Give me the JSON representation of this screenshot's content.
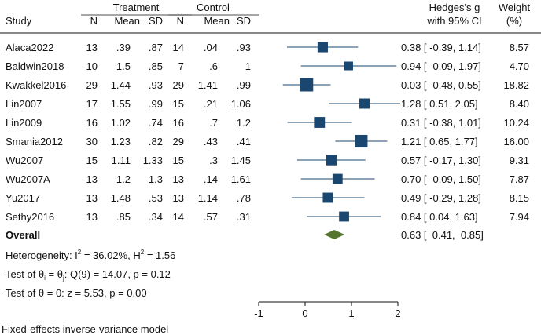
{
  "chart_data": {
    "type": "forest",
    "headers": {
      "study": "Study",
      "treatment": "Treatment",
      "control": "Control",
      "n": "N",
      "mean": "Mean",
      "sd": "SD",
      "effect_line1": "Hedges's g",
      "effect_line2": "with 95% CI",
      "weight_line1": "Weight",
      "weight_line2": "(%)"
    },
    "studies": [
      {
        "name": "Alaca2022",
        "t_n": "13",
        "t_mean": ".39",
        "t_sd": ".87",
        "c_n": "14",
        "c_mean": ".04",
        "c_sd": ".93",
        "g": 0.38,
        "lo": -0.39,
        "hi": 1.14,
        "ci_text": "0.38 [ -0.39,  1.14]",
        "weight": 8.57,
        "weight_text": "8.57"
      },
      {
        "name": "Baldwin2018",
        "t_n": "10",
        "t_mean": "1.5",
        "t_sd": ".85",
        "c_n": "7",
        "c_mean": ".6",
        "c_sd": "1",
        "g": 0.94,
        "lo": -0.09,
        "hi": 1.97,
        "ci_text": "0.94 [ -0.09,  1.97]",
        "weight": 4.7,
        "weight_text": "4.70"
      },
      {
        "name": "Kwakkel2016",
        "t_n": "29",
        "t_mean": "1.44",
        "t_sd": ".93",
        "c_n": "29",
        "c_mean": "1.41",
        "c_sd": ".99",
        "g": 0.03,
        "lo": -0.48,
        "hi": 0.55,
        "ci_text": "0.03 [ -0.48,  0.55]",
        "weight": 18.82,
        "weight_text": "18.82"
      },
      {
        "name": "Lin2007",
        "t_n": "17",
        "t_mean": "1.55",
        "t_sd": ".99",
        "c_n": "15",
        "c_mean": ".21",
        "c_sd": "1.06",
        "g": 1.28,
        "lo": 0.51,
        "hi": 2.05,
        "ci_text": "1.28 [  0.51,  2.05]",
        "weight": 8.4,
        "weight_text": "8.40"
      },
      {
        "name": "Lin2009",
        "t_n": "16",
        "t_mean": "1.02",
        "t_sd": ".74",
        "c_n": "16",
        "c_mean": ".7",
        "c_sd": "1.2",
        "g": 0.31,
        "lo": -0.38,
        "hi": 1.01,
        "ci_text": "0.31 [ -0.38,  1.01]",
        "weight": 10.24,
        "weight_text": "10.24"
      },
      {
        "name": "Smania2012",
        "t_n": "30",
        "t_mean": "1.23",
        "t_sd": ".82",
        "c_n": "29",
        "c_mean": ".43",
        "c_sd": ".41",
        "g": 1.21,
        "lo": 0.65,
        "hi": 1.77,
        "ci_text": "1.21 [  0.65,  1.77]",
        "weight": 16.0,
        "weight_text": "16.00"
      },
      {
        "name": "Wu2007",
        "t_n": "15",
        "t_mean": "1.11",
        "t_sd": "1.33",
        "c_n": "15",
        "c_mean": ".3",
        "c_sd": "1.45",
        "g": 0.57,
        "lo": -0.17,
        "hi": 1.3,
        "ci_text": "0.57 [ -0.17,  1.30]",
        "weight": 9.31,
        "weight_text": "9.31"
      },
      {
        "name": "Wu2007A",
        "t_n": "13",
        "t_mean": "1.2",
        "t_sd": "1.3",
        "c_n": "13",
        "c_mean": ".14",
        "c_sd": "1.61",
        "g": 0.7,
        "lo": -0.09,
        "hi": 1.5,
        "ci_text": "0.70 [ -0.09,  1.50]",
        "weight": 7.87,
        "weight_text": "7.87"
      },
      {
        "name": "Yu2017",
        "t_n": "13",
        "t_mean": "1.48",
        "t_sd": ".53",
        "c_n": "13",
        "c_mean": "1.14",
        "c_sd": ".78",
        "g": 0.49,
        "lo": -0.29,
        "hi": 1.28,
        "ci_text": "0.49 [ -0.29,  1.28]",
        "weight": 8.15,
        "weight_text": "8.15"
      },
      {
        "name": "Sethy2016",
        "t_n": "13",
        "t_mean": ".85",
        "t_sd": ".34",
        "c_n": "14",
        "c_mean": ".57",
        "c_sd": ".31",
        "g": 0.84,
        "lo": 0.04,
        "hi": 1.63,
        "ci_text": "0.84 [  0.04,  1.63]",
        "weight": 7.94,
        "weight_text": "7.94"
      }
    ],
    "overall": {
      "label": "Overall",
      "g": 0.63,
      "lo": 0.41,
      "hi": 0.85,
      "ci_text": "0.63 [  0.41,  0.85]"
    },
    "heterogeneity": {
      "prefix": "Heterogeneity: I",
      "sup1": "2",
      "mid": " = 36.02%, H",
      "sup2": "2",
      "suffix": " = 1.56"
    },
    "test_homogeneity": {
      "prefix": "Test of θ",
      "sub1": "i",
      "mid": " = θ",
      "sub2": "j",
      "suffix": ": Q(9) = 14.07, p = 0.12"
    },
    "test_effect": "Test of θ = 0: z = 5.53, p = 0.00",
    "footnote": "Fixed-effects inverse-variance model",
    "xaxis": {
      "ticks": [
        -1,
        0,
        1,
        2
      ],
      "tick_labels": [
        "-1",
        "0",
        "1",
        "2"
      ],
      "range": [
        -1,
        2
      ]
    },
    "colors": {
      "marker": "#1a476f",
      "diamond": "#55752f",
      "text": "#111111"
    }
  }
}
